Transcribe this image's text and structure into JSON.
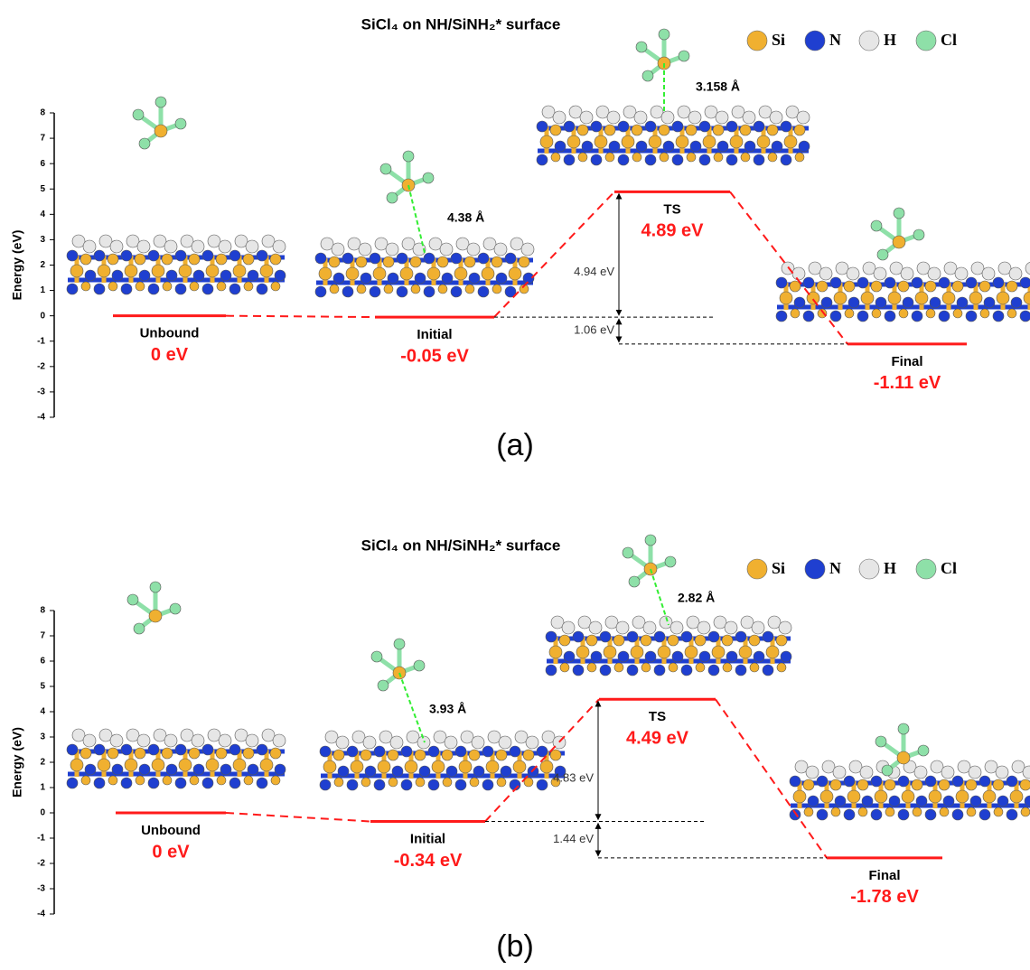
{
  "chart_data": [
    {
      "type": "energy_profile",
      "title": "SiCl₄ on NH/SiNH₂* surface",
      "panel_label": "(a)",
      "y_label": "Energy (eV)",
      "ylim": [
        -4,
        8
      ],
      "yticks": [
        -4,
        -3,
        -2,
        -1,
        0,
        1,
        2,
        3,
        4,
        5,
        6,
        7,
        8
      ],
      "legend": [
        {
          "name": "Si",
          "color": "#f0b030"
        },
        {
          "name": "N",
          "color": "#1f3fd0"
        },
        {
          "name": "H",
          "color": "#e6e6e6"
        },
        {
          "name": "Cl",
          "color": "#8ee0a8"
        }
      ],
      "categories": [
        "Unbound",
        "Initial",
        "TS",
        "Final"
      ],
      "values": [
        0,
        -0.05,
        4.89,
        -1.11
      ],
      "value_labels": [
        "0 eV",
        "-0.05 eV",
        "4.89 eV",
        "-1.11 eV"
      ],
      "color": "#ff1a1a",
      "barrier": {
        "value": 4.94,
        "label": "4.94 eV"
      },
      "reaction_energy": {
        "value": 1.06,
        "label": "1.06 eV"
      },
      "distances": [
        "4.38 Å",
        "3.158 Å"
      ]
    },
    {
      "type": "energy_profile",
      "title": "SiCl₄ on NH/SiNH₂* surface",
      "panel_label": "(b)",
      "y_label": "Energy (eV)",
      "ylim": [
        -4,
        8
      ],
      "yticks": [
        -4,
        -3,
        -2,
        -1,
        0,
        1,
        2,
        3,
        4,
        5,
        6,
        7,
        8
      ],
      "legend": [
        {
          "name": "Si",
          "color": "#f0b030"
        },
        {
          "name": "N",
          "color": "#1f3fd0"
        },
        {
          "name": "H",
          "color": "#e6e6e6"
        },
        {
          "name": "Cl",
          "color": "#8ee0a8"
        }
      ],
      "categories": [
        "Unbound",
        "Initial",
        "TS",
        "Final"
      ],
      "values": [
        0,
        -0.34,
        4.49,
        -1.78
      ],
      "value_labels": [
        "0 eV",
        "-0.34 eV",
        "4.49 eV",
        "-1.78 eV"
      ],
      "color": "#ff1a1a",
      "barrier": {
        "value": 4.83,
        "label": "4.83 eV"
      },
      "reaction_energy": {
        "value": 1.44,
        "label": "1.44 eV"
      },
      "distances": [
        "3.93 Å",
        "2.82 Å"
      ]
    }
  ]
}
